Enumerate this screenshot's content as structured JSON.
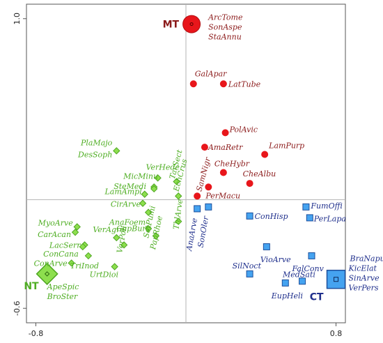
{
  "colors": {
    "red": "#e8161b",
    "red_label": "#8b1a1a",
    "green": "#8ddf4e",
    "green_edge": "#4ea521",
    "green_label": "#4fae23",
    "blue": "#45a3f0",
    "blue_edge": "#1d4f9c",
    "blue_label": "#1f2f8c",
    "axis": "#b3b3b3"
  },
  "chart_data": {
    "type": "scatter",
    "title": "",
    "xlabel": "",
    "ylabel": "",
    "xlim": [
      -0.85,
      0.85
    ],
    "ylim": [
      -0.68,
      1.08
    ],
    "x_ticks": [
      "-0.8",
      "0.8"
    ],
    "y_ticks": [
      "1.0",
      "-0.6"
    ],
    "reference_lines": {
      "x": 0,
      "y": 0
    },
    "grid": false,
    "legend": "none",
    "centroids": [
      {
        "name": "MT",
        "x": 0.03,
        "y": 0.97,
        "shape": "circle",
        "color": "red"
      },
      {
        "name": "NT",
        "x": -0.74,
        "y": -0.41,
        "shape": "diamond",
        "color": "green"
      },
      {
        "name": "CT",
        "x": 0.8,
        "y": -0.44,
        "shape": "square",
        "color": "blue"
      }
    ],
    "red_species": [
      {
        "label": "ArcTome",
        "x": 0.03,
        "y": 0.97
      },
      {
        "label": "SonAspe",
        "x": 0.03,
        "y": 0.97
      },
      {
        "label": "StaAnnu",
        "x": 0.03,
        "y": 0.97
      },
      {
        "label": "GalApar",
        "x": 0.04,
        "y": 0.64
      },
      {
        "label": "LatTube",
        "x": 0.2,
        "y": 0.64
      },
      {
        "label": "PolAvic",
        "x": 0.21,
        "y": 0.37
      },
      {
        "label": "AmaRetr",
        "x": 0.1,
        "y": 0.29
      },
      {
        "label": "LamPurp",
        "x": 0.42,
        "y": 0.25
      },
      {
        "label": "CheHybr",
        "x": 0.2,
        "y": 0.15
      },
      {
        "label": "CheAlbu",
        "x": 0.34,
        "y": 0.09
      },
      {
        "label": "PerMacu",
        "x": 0.12,
        "y": 0.07
      },
      {
        "label": "SamNigr",
        "x": 0.06,
        "y": 0.02
      }
    ],
    "green_species": [
      {
        "label": "PlaMajo",
        "x": -0.37,
        "y": 0.27
      },
      {
        "label": "DesSoph",
        "x": -0.37,
        "y": 0.27
      },
      {
        "label": "VerHede",
        "x": -0.15,
        "y": 0.12
      },
      {
        "label": "TarSect",
        "x": -0.05,
        "y": 0.1
      },
      {
        "label": "MicMinu",
        "x": -0.17,
        "y": 0.07
      },
      {
        "label": "SteMedi",
        "x": -0.17,
        "y": 0.06
      },
      {
        "label": "EchCrus",
        "x": -0.04,
        "y": 0.02
      },
      {
        "label": "LamAmpl",
        "x": -0.22,
        "y": 0.03
      },
      {
        "label": "CirArve",
        "x": -0.23,
        "y": -0.02
      },
      {
        "label": "AnaFoem",
        "x": -0.2,
        "y": -0.07
      },
      {
        "label": "CapBurs",
        "x": -0.2,
        "y": -0.07
      },
      {
        "label": "MyoArve",
        "x": -0.58,
        "y": -0.15
      },
      {
        "label": "CarAcan",
        "x": -0.59,
        "y": -0.18
      },
      {
        "label": "VerAgre",
        "x": -0.37,
        "y": -0.21
      },
      {
        "label": "LacSerr",
        "x": -0.54,
        "y": -0.25
      },
      {
        "label": "ConCana",
        "x": -0.55,
        "y": -0.26
      },
      {
        "label": "TriInod",
        "x": -0.52,
        "y": -0.31
      },
      {
        "label": "ConArve",
        "x": -0.61,
        "y": -0.35
      },
      {
        "label": "UrtDioi",
        "x": -0.38,
        "y": -0.37
      },
      {
        "label": "VerPoli",
        "x": -0.33,
        "y": -0.25
      },
      {
        "label": "SetPumi",
        "x": -0.2,
        "y": -0.16
      },
      {
        "label": "PapRhoe",
        "x": -0.16,
        "y": -0.2
      },
      {
        "label": "ThlArve",
        "x": -0.04,
        "y": -0.12
      },
      {
        "label": "ApeSpic",
        "x": -0.74,
        "y": -0.41
      },
      {
        "label": "BroSter",
        "x": -0.74,
        "y": -0.41
      }
    ],
    "blue_species": [
      {
        "label": "AnaArve",
        "x": 0.06,
        "y": -0.05
      },
      {
        "label": "SonOler",
        "x": 0.12,
        "y": -0.04
      },
      {
        "label": "ConHisp",
        "x": 0.34,
        "y": -0.09
      },
      {
        "label": "FumOffi",
        "x": 0.64,
        "y": -0.04
      },
      {
        "label": "PerLapa",
        "x": 0.66,
        "y": -0.1
      },
      {
        "label": "VioArve",
        "x": 0.43,
        "y": -0.26
      },
      {
        "label": "FalConv",
        "x": 0.67,
        "y": -0.31
      },
      {
        "label": "SilNoct",
        "x": 0.34,
        "y": -0.41
      },
      {
        "label": "MedSati",
        "x": 0.62,
        "y": -0.45
      },
      {
        "label": "EupHeli",
        "x": 0.53,
        "y": -0.46
      },
      {
        "label": "BraNapu",
        "x": 0.8,
        "y": -0.44
      },
      {
        "label": "KicElat",
        "x": 0.8,
        "y": -0.44
      },
      {
        "label": "SinArve",
        "x": 0.8,
        "y": -0.44
      },
      {
        "label": "VerPers",
        "x": 0.8,
        "y": -0.44
      }
    ]
  }
}
